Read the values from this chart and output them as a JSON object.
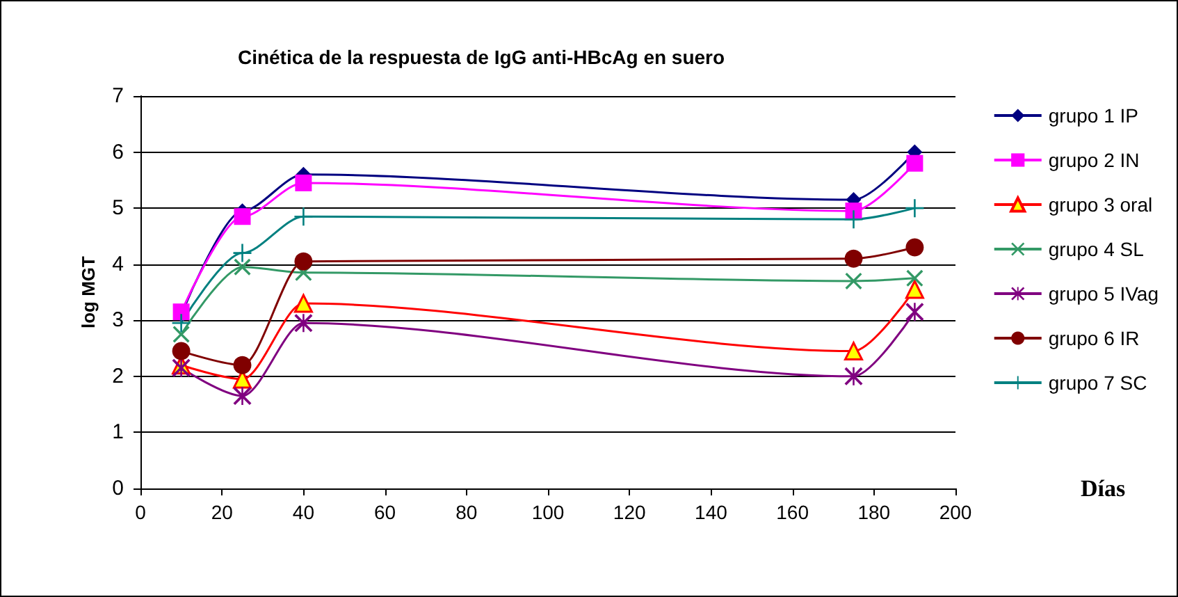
{
  "chart_data": {
    "type": "line",
    "title": "Cinética de la respuesta de IgG anti-HBcAg en suero",
    "xlabel": "Días",
    "ylabel": "log MGT",
    "x": [
      10,
      25,
      40,
      175,
      190
    ],
    "series": [
      {
        "name": "grupo 1 IP",
        "color": "#000080",
        "marker": "diamond",
        "values": [
          3.1,
          4.95,
          5.6,
          5.15,
          6.0
        ]
      },
      {
        "name": "grupo 2 IN",
        "color": "#ff00ff",
        "marker": "square",
        "values": [
          3.15,
          4.85,
          5.45,
          4.95,
          5.8
        ]
      },
      {
        "name": "grupo 3 oral",
        "color": "#ff0000",
        "marker": "triangle",
        "values": [
          2.2,
          1.95,
          3.3,
          2.45,
          3.55
        ]
      },
      {
        "name": "grupo 4 SL",
        "color": "#339966",
        "marker": "cross",
        "values": [
          2.75,
          3.95,
          3.85,
          3.7,
          3.75
        ]
      },
      {
        "name": "grupo 5 IVag",
        "color": "#800080",
        "marker": "star",
        "values": [
          2.15,
          1.65,
          2.95,
          2.0,
          3.15
        ]
      },
      {
        "name": "grupo 6 IR",
        "color": "#800000",
        "marker": "circle",
        "values": [
          2.45,
          2.2,
          4.05,
          4.1,
          4.3
        ]
      },
      {
        "name": "grupo 7 SC",
        "color": "#008080",
        "marker": "plus",
        "values": [
          2.95,
          4.2,
          4.85,
          4.8,
          5.0
        ]
      }
    ],
    "xlim": [
      0,
      200
    ],
    "xticks": [
      0,
      20,
      40,
      60,
      80,
      100,
      120,
      140,
      160,
      180,
      200
    ],
    "ylim": [
      0,
      7
    ],
    "yticks": [
      0,
      1,
      2,
      3,
      4,
      5,
      6,
      7
    ],
    "grid": "y",
    "legend": "right"
  }
}
